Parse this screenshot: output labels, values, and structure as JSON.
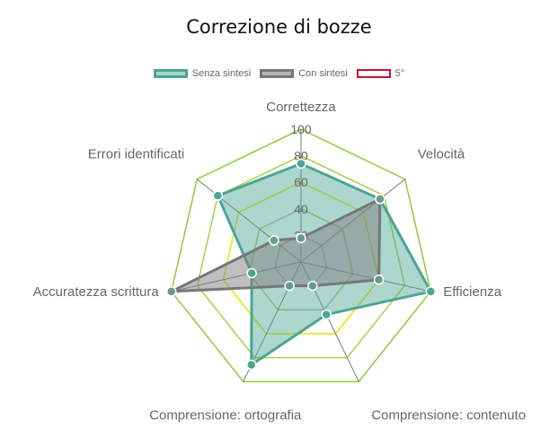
{
  "chart_data": {
    "type": "radar",
    "title": "Correzione di bozze",
    "axes": [
      "Correttezza",
      "Velocità",
      "Efficienza",
      "Comprensione: contenuto",
      "Comprensione: ortografia",
      "Accuratezza scrittura",
      "Errori identificati"
    ],
    "r_ticks": [
      "20",
      "40",
      "60",
      "80",
      "100"
    ],
    "r_range": [
      0,
      100
    ],
    "series": [
      {
        "name": "Senza sintesi",
        "values": [
          74,
          76,
          100,
          44,
          86,
          38,
          80
        ],
        "stroke": "#4aa593",
        "fill": "rgba(74,165,147,0.45)",
        "point": "#4aa593"
      },
      {
        "name": "Con sintesi",
        "values": [
          18,
          76,
          60,
          20,
          20,
          100,
          26
        ],
        "stroke": "#777777",
        "fill": "rgba(128,128,128,0.5)",
        "point": "#6a9a8c"
      }
    ],
    "legend": [
      {
        "name": "Senza sintesi",
        "stroke": "#4aa593",
        "fill": "#a9d6cc"
      },
      {
        "name": "Con sintesi",
        "stroke": "#777777",
        "fill": "#b3b3b3"
      },
      {
        "name": "5°",
        "stroke": "#c8102e",
        "fill": "#ffffff"
      }
    ],
    "grid_colors": [
      "#d9a38f",
      "#c0c070",
      "#e6e600",
      "#a6d24a",
      "#8ccc3c"
    ],
    "spoke_color": "#777777",
    "legend_position": "top"
  }
}
